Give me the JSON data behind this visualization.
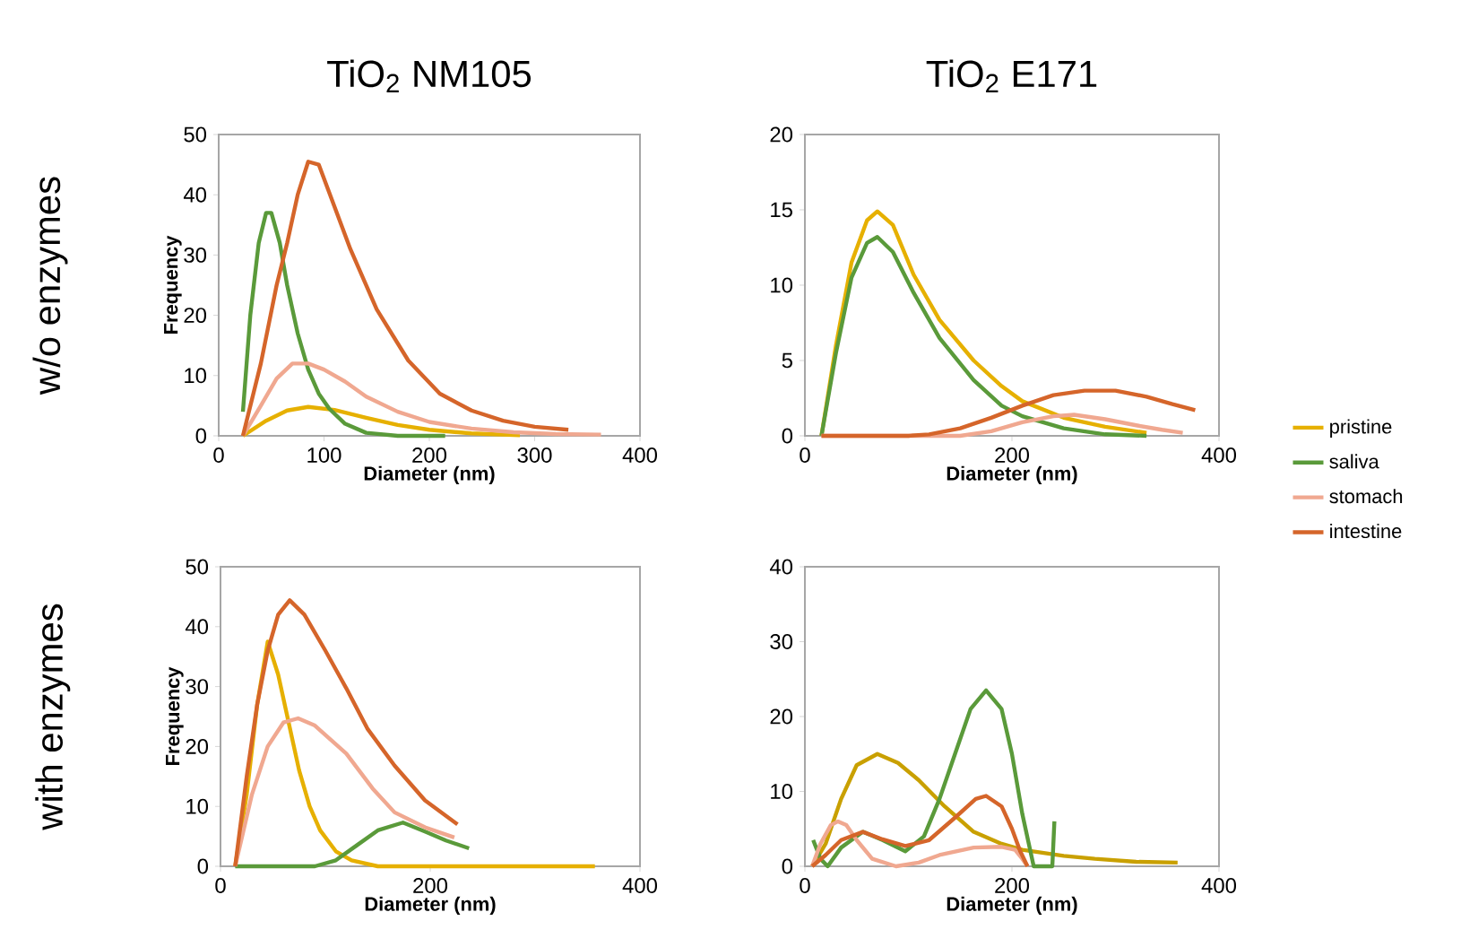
{
  "chart_data": [
    {
      "type": "line",
      "title": "TiO$_{2}$ NM105",
      "xlabel": "Diameter (nm)",
      "ylabel": "Frequency",
      "annotations": [
        "w/o enzymes"
      ],
      "xlim": [
        0,
        400
      ],
      "ylim": [
        0,
        50
      ],
      "xticks": [
        0,
        100,
        200,
        300,
        400
      ],
      "yticks": [
        0,
        10,
        20,
        30,
        40,
        50
      ],
      "series": [
        {
          "color": "#e6b000",
          "x": [
            23,
            45,
            65,
            85,
            110,
            140,
            170,
            200,
            240,
            286
          ],
          "values": [
            0,
            2.5,
            4.2,
            4.8,
            4.3,
            3,
            1.8,
            1,
            0.4,
            0.1
          ]
        },
        {
          "color": "#5a9a3a",
          "x": [
            23,
            30,
            38,
            45,
            50,
            58,
            65,
            75,
            85,
            95,
            105,
            120,
            140,
            170,
            215
          ],
          "values": [
            4,
            20,
            32,
            37,
            37,
            32,
            25,
            17,
            11,
            7,
            4.5,
            2,
            0.5,
            0,
            0
          ]
        },
        {
          "color": "#f0a890",
          "x": [
            23,
            40,
            55,
            70,
            85,
            100,
            120,
            140,
            170,
            200,
            240,
            280,
            320,
            363
          ],
          "values": [
            0,
            5,
            9.5,
            12,
            12,
            11,
            9,
            6.5,
            4,
            2.3,
            1.2,
            0.6,
            0.3,
            0.2
          ]
        },
        {
          "color": "#d5652a",
          "x": [
            23,
            40,
            55,
            65,
            75,
            85,
            95,
            110,
            125,
            150,
            180,
            210,
            240,
            270,
            300,
            332
          ],
          "values": [
            0,
            12,
            25,
            32,
            40,
            45.5,
            45,
            38,
            31,
            21,
            12.5,
            7,
            4.2,
            2.5,
            1.5,
            1
          ]
        }
      ]
    },
    {
      "type": "line",
      "title": "TiO$_{2}$ E171",
      "xlabel": "Diameter (nm)",
      "legend": "right",
      "xlim": [
        0,
        400
      ],
      "ylim": [
        0,
        20
      ],
      "xticks": [
        0,
        200,
        400
      ],
      "yticks": [
        0,
        5,
        10,
        15,
        20
      ],
      "series": [
        {
          "name": "pristine",
          "color": "#e6b000",
          "x": [
            16,
            30,
            45,
            60,
            70,
            85,
            105,
            130,
            163,
            190,
            210,
            250,
            290,
            330
          ],
          "values": [
            0,
            6,
            11.5,
            14.3,
            14.9,
            14,
            10.7,
            7.7,
            5,
            3.3,
            2.3,
            1.2,
            0.6,
            0.2
          ]
        },
        {
          "name": "saliva",
          "color": "#5a9a3a",
          "x": [
            16,
            30,
            45,
            60,
            70,
            85,
            105,
            130,
            163,
            190,
            210,
            250,
            290,
            330
          ],
          "values": [
            0,
            5.5,
            10.5,
            12.8,
            13.2,
            12.2,
            9.5,
            6.5,
            3.7,
            2,
            1.3,
            0.5,
            0.1,
            0
          ]
        },
        {
          "name": "stomach",
          "color": "#f0a890",
          "x": [
            16,
            150,
            180,
            210,
            240,
            260,
            290,
            320,
            345,
            365
          ],
          "values": [
            0,
            0,
            0.3,
            0.9,
            1.3,
            1.4,
            1.1,
            0.7,
            0.4,
            0.2
          ]
        },
        {
          "name": "intestine",
          "color": "#d5652a",
          "x": [
            16,
            100,
            120,
            150,
            180,
            210,
            240,
            270,
            300,
            330,
            355,
            377
          ],
          "values": [
            0,
            0,
            0.1,
            0.5,
            1.2,
            2,
            2.7,
            3,
            3,
            2.6,
            2.1,
            1.7
          ]
        }
      ]
    },
    {
      "type": "line",
      "xlabel": "Diameter (nm)",
      "ylabel": "Frequency",
      "annotations": [
        "with enzymes"
      ],
      "xlim": [
        0,
        400
      ],
      "ylim": [
        0,
        50
      ],
      "xticks": [
        0,
        200,
        400
      ],
      "yticks": [
        0,
        10,
        20,
        30,
        40,
        50
      ],
      "series": [
        {
          "color": "#e6b000",
          "x": [
            14,
            25,
            35,
            45,
            55,
            65,
            75,
            85,
            95,
            110,
            125,
            150,
            200,
            357
          ],
          "values": [
            0,
            12,
            27,
            37.5,
            32,
            24,
            16,
            10,
            6,
            2.5,
            1,
            0,
            0,
            0
          ]
        },
        {
          "color": "#5a9a3a",
          "x": [
            14,
            90,
            110,
            130,
            150,
            174,
            195,
            215,
            237
          ],
          "values": [
            0,
            0,
            1,
            3.5,
            6,
            7.3,
            5.8,
            4.3,
            3
          ]
        },
        {
          "color": "#f0a890",
          "x": [
            14,
            30,
            45,
            60,
            74,
            90,
            120,
            145,
            166,
            195,
            223
          ],
          "values": [
            0,
            12,
            20,
            24,
            24.7,
            23.5,
            18.8,
            13,
            9,
            6.5,
            4.8
          ]
        },
        {
          "color": "#d5652a",
          "x": [
            14,
            25,
            35,
            45,
            55,
            66,
            80,
            100,
            120,
            140,
            166,
            195,
            226
          ],
          "values": [
            0,
            15,
            27,
            36,
            42,
            44.4,
            42,
            36,
            29.7,
            23,
            16.8,
            11,
            7
          ]
        }
      ]
    },
    {
      "type": "line",
      "xlabel": "Diameter (nm)",
      "xlim": [
        0,
        400
      ],
      "ylim": [
        0,
        40
      ],
      "xticks": [
        0,
        200,
        400
      ],
      "yticks": [
        0,
        10,
        20,
        30,
        40
      ],
      "series": [
        {
          "color": "#c9a000",
          "x": [
            7,
            20,
            35,
            50,
            70,
            90,
            110,
            135,
            163,
            190,
            210,
            250,
            280,
            320,
            360
          ],
          "values": [
            0,
            3,
            9,
            13.5,
            15,
            13.8,
            11.5,
            8,
            4.6,
            3,
            2.2,
            1.4,
            1,
            0.6,
            0.5
          ]
        },
        {
          "color": "#5a9a3a",
          "x": [
            8,
            15,
            22,
            35,
            56,
            75,
            97,
            115,
            130,
            145,
            160,
            175,
            190,
            200,
            210,
            221,
            239,
            241
          ],
          "values": [
            3.5,
            1,
            0,
            2.5,
            4.6,
            3.5,
            2,
            4,
            9,
            15,
            21,
            23.5,
            21,
            15,
            7,
            0,
            0,
            6
          ]
        },
        {
          "color": "#f0a890",
          "x": [
            7,
            15,
            25,
            32,
            40,
            50,
            65,
            88,
            110,
            130,
            163,
            190,
            203,
            210,
            215
          ],
          "values": [
            0,
            3,
            5.5,
            6,
            5.5,
            3.5,
            1,
            0,
            0.5,
            1.5,
            2.5,
            2.6,
            2.2,
            1,
            0
          ]
        },
        {
          "color": "#d5652a",
          "x": [
            7,
            20,
            35,
            56,
            75,
            97,
            120,
            145,
            165,
            175,
            190,
            200,
            208,
            215
          ],
          "values": [
            0,
            1.5,
            3.5,
            4.6,
            3.6,
            2.7,
            3.5,
            6.5,
            9,
            9.4,
            8,
            5,
            2,
            0
          ]
        }
      ]
    }
  ]
}
